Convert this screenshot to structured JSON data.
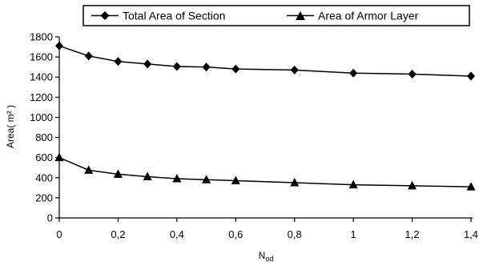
{
  "chart_data": {
    "type": "line",
    "title": "",
    "xlabel": "N",
    "xlabel_subscript": "od",
    "ylabel": "Area( m² )",
    "x": [
      0,
      0.1,
      0.2,
      0.3,
      0.4,
      0.5,
      0.6,
      0.8,
      1.0,
      1.2,
      1.4
    ],
    "xlim": [
      0,
      1.4
    ],
    "ylim": [
      0,
      1800
    ],
    "x_ticks": [
      0,
      0.2,
      0.4,
      0.6,
      0.8,
      1,
      1.2,
      1.4
    ],
    "x_tick_labels": [
      "0",
      "0,2",
      "0,4",
      "0,6",
      "0,8",
      "1",
      "1,2",
      "1,4"
    ],
    "y_ticks": [
      0,
      200,
      400,
      600,
      800,
      1000,
      1200,
      1400,
      1600,
      1800
    ],
    "y_tick_labels": [
      "0",
      "200",
      "400",
      "600",
      "800",
      "1000",
      "1200",
      "1400",
      "1600",
      "1800"
    ],
    "grid": false,
    "legend_position": "top",
    "series": [
      {
        "name": "Total Area of Section",
        "marker": "diamond",
        "values": [
          1710,
          1610,
          1555,
          1530,
          1505,
          1500,
          1480,
          1470,
          1440,
          1430,
          1410
        ]
      },
      {
        "name": "Area of Armor Layer",
        "marker": "triangle",
        "values": [
          600,
          475,
          435,
          410,
          390,
          380,
          370,
          350,
          330,
          320,
          310
        ]
      }
    ]
  }
}
